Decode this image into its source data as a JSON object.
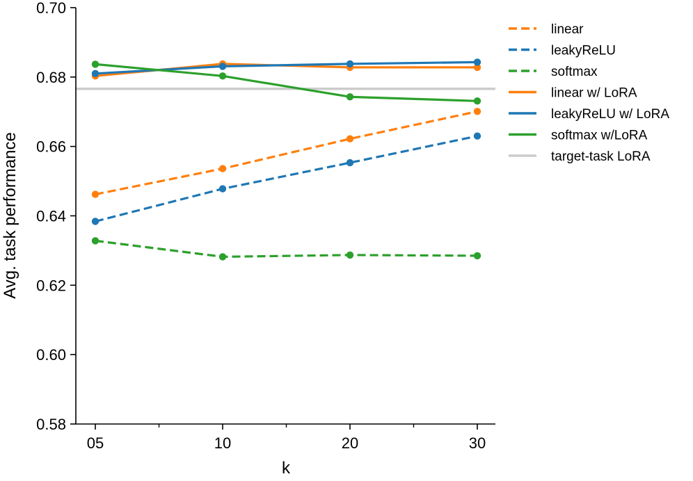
{
  "chart_data": {
    "type": "line",
    "title": "",
    "xlabel": "k",
    "ylabel": "Avg. task performance",
    "categories": [
      "05",
      "10",
      "20",
      "30"
    ],
    "ylim": [
      0.58,
      0.7
    ],
    "yticks": [
      "0.58",
      "0.60",
      "0.62",
      "0.64",
      "0.66",
      "0.68",
      "0.70"
    ],
    "grid": false,
    "legend_position": "right",
    "series": [
      {
        "name": "linear",
        "color": "#ff7f0e",
        "style": "dashed",
        "values": [
          0.6462,
          0.6536,
          0.6622,
          0.6701
        ]
      },
      {
        "name": "leakyReLU",
        "color": "#1f77b4",
        "style": "dashed",
        "values": [
          0.6384,
          0.6478,
          0.6553,
          0.663
        ]
      },
      {
        "name": "softmax",
        "color": "#2ca02c",
        "style": "dashed",
        "values": [
          0.6328,
          0.6282,
          0.6287,
          0.6285
        ]
      },
      {
        "name": "linear w/ LoRA",
        "color": "#ff7f0e",
        "style": "solid",
        "values": [
          0.6803,
          0.6838,
          0.6828,
          0.6828
        ]
      },
      {
        "name": "leakyReLU w/ LoRA",
        "color": "#1f77b4",
        "style": "solid",
        "values": [
          0.681,
          0.6831,
          0.6838,
          0.6843
        ]
      },
      {
        "name": "softmax w/LoRA",
        "color": "#2ca02c",
        "style": "solid",
        "values": [
          0.6837,
          0.6803,
          0.6743,
          0.6731
        ]
      }
    ],
    "reference_lines": [
      {
        "name": "target-task LoRA",
        "color": "#cccccc",
        "value": 0.6766
      }
    ]
  }
}
